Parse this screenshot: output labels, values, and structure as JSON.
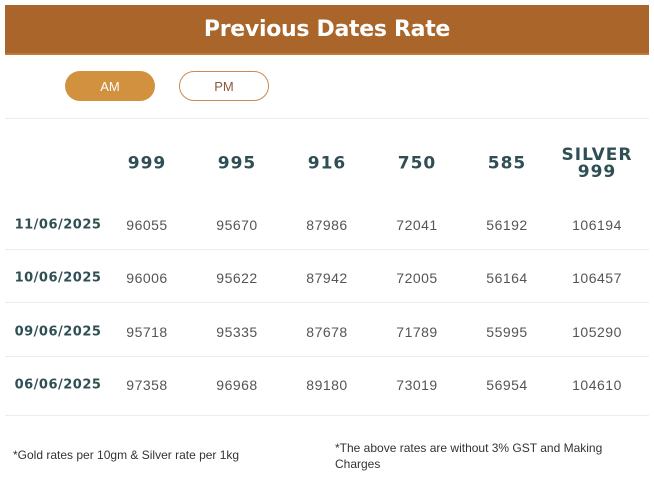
{
  "header": {
    "title": "Previous Dates Rate"
  },
  "colors": {
    "header_bg": "#A9652A",
    "active_toggle": "#D1913F",
    "text_dark": "#2f4f55"
  },
  "toggles": [
    {
      "label": "AM",
      "active": true
    },
    {
      "label": "PM",
      "active": false
    }
  ],
  "table": {
    "columns": [
      "999",
      "995",
      "916",
      "750",
      "585",
      "SILVER 999"
    ],
    "rows": [
      {
        "date": "11/06/2025",
        "values": [
          "96055",
          "95670",
          "87986",
          "72041",
          "56192",
          "106194"
        ]
      },
      {
        "date": "10/06/2025",
        "values": [
          "96006",
          "95622",
          "87942",
          "72005",
          "56164",
          "106457"
        ]
      },
      {
        "date": "09/06/2025",
        "values": [
          "95718",
          "95335",
          "87678",
          "71789",
          "55995",
          "105290"
        ]
      },
      {
        "date": "06/06/2025",
        "values": [
          "97358",
          "96968",
          "89180",
          "73019",
          "56954",
          "104610"
        ]
      }
    ]
  },
  "footer": {
    "left_note": "*Gold rates per 10gm & Silver rate per 1kg",
    "right_note": "*The above rates are without 3% GST and Making Charges"
  }
}
